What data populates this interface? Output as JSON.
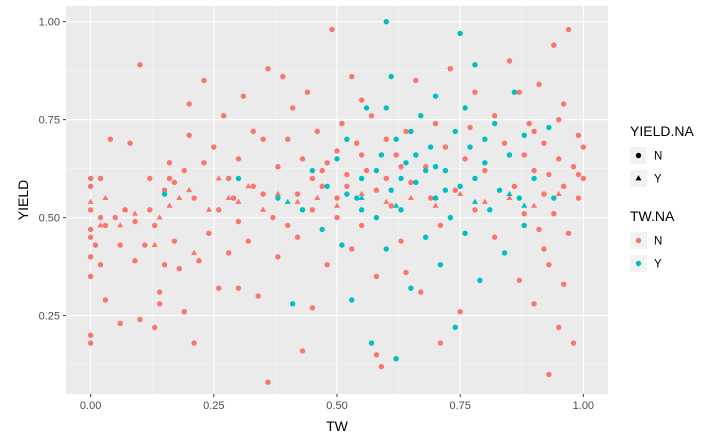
{
  "chart_data": {
    "type": "scatter",
    "title": "",
    "xlabel": "TW",
    "ylabel": "YIELD",
    "xlim": [
      -0.05,
      1.05
    ],
    "ylim": [
      0.05,
      1.04
    ],
    "x_ticks": [
      0,
      0.25,
      0.5,
      0.75,
      1
    ],
    "x_tick_labels": [
      "0.00",
      "0.25",
      "0.50",
      "0.75",
      "1.00"
    ],
    "y_ticks": [
      0.25,
      0.5,
      0.75,
      1
    ],
    "y_tick_labels": [
      "0.25",
      "0.50",
      "0.75",
      "1.00"
    ],
    "grid": true,
    "legend_position": "right",
    "legends": [
      {
        "title": "YIELD.NA",
        "kind": "shape",
        "entries": [
          {
            "label": "N",
            "shape": "circle"
          },
          {
            "label": "Y",
            "shape": "triangle"
          }
        ]
      },
      {
        "title": "TW.NA",
        "kind": "color",
        "entries": [
          {
            "label": "N",
            "color": "#F8766D"
          },
          {
            "label": "Y",
            "color": "#00BFC4"
          }
        ]
      }
    ],
    "colors": {
      "N": "#F8766D",
      "Y": "#00BFC4"
    },
    "series": [
      {
        "tw_na": "N",
        "yield_na": "N",
        "shape": "circle",
        "points": [
          [
            0,
            0.18
          ],
          [
            0,
            0.2
          ],
          [
            0,
            0.35
          ],
          [
            0,
            0.4
          ],
          [
            0,
            0.45
          ],
          [
            0,
            0.47
          ],
          [
            0,
            0.52
          ],
          [
            0,
            0.58
          ],
          [
            0,
            0.6
          ],
          [
            0.01,
            0.43
          ],
          [
            0.02,
            0.38
          ],
          [
            0.02,
            0.5
          ],
          [
            0.02,
            0.6
          ],
          [
            0.03,
            0.29
          ],
          [
            0.03,
            0.48
          ],
          [
            0.04,
            0.7
          ],
          [
            0.05,
            0.5
          ],
          [
            0.06,
            0.23
          ],
          [
            0.06,
            0.43
          ],
          [
            0.07,
            0.52
          ],
          [
            0.08,
            0.69
          ],
          [
            0.09,
            0.49
          ],
          [
            0.09,
            0.39
          ],
          [
            0.1,
            0.24
          ],
          [
            0.1,
            0.89
          ],
          [
            0.11,
            0.43
          ],
          [
            0.12,
            0.6
          ],
          [
            0.12,
            0.52
          ],
          [
            0.13,
            0.22
          ],
          [
            0.13,
            0.48
          ],
          [
            0.14,
            0.28
          ],
          [
            0.14,
            0.31
          ],
          [
            0.15,
            0.38
          ],
          [
            0.15,
            0.57
          ],
          [
            0.16,
            0.6
          ],
          [
            0.16,
            0.64
          ],
          [
            0.17,
            0.44
          ],
          [
            0.17,
            0.59
          ],
          [
            0.18,
            0.37
          ],
          [
            0.19,
            0.26
          ],
          [
            0.19,
            0.62
          ],
          [
            0.2,
            0.71
          ],
          [
            0.2,
            0.79
          ],
          [
            0.21,
            0.18
          ],
          [
            0.21,
            0.55
          ],
          [
            0.22,
            0.39
          ],
          [
            0.23,
            0.85
          ],
          [
            0.23,
            0.64
          ],
          [
            0.24,
            0.46
          ],
          [
            0.25,
            0.68
          ],
          [
            0.26,
            0.32
          ],
          [
            0.26,
            0.52
          ],
          [
            0.27,
            0.76
          ],
          [
            0.28,
            0.41
          ],
          [
            0.28,
            0.6
          ],
          [
            0.29,
            0.55
          ],
          [
            0.3,
            0.32
          ],
          [
            0.3,
            0.65
          ],
          [
            0.31,
            0.81
          ],
          [
            0.32,
            0.44
          ],
          [
            0.33,
            0.58
          ],
          [
            0.34,
            0.3
          ],
          [
            0.35,
            0.56
          ],
          [
            0.35,
            0.7
          ],
          [
            0.36,
            0.08
          ],
          [
            0.36,
            0.88
          ],
          [
            0.37,
            0.5
          ],
          [
            0.38,
            0.63
          ],
          [
            0.38,
            0.4
          ],
          [
            0.39,
            0.86
          ],
          [
            0.4,
            0.7
          ],
          [
            0.41,
            0.78
          ],
          [
            0.42,
            0.56
          ],
          [
            0.42,
            0.45
          ],
          [
            0.43,
            0.65
          ],
          [
            0.44,
            0.82
          ],
          [
            0.45,
            0.52
          ],
          [
            0.45,
            0.27
          ],
          [
            0.46,
            0.72
          ],
          [
            0.47,
            0.58
          ],
          [
            0.48,
            0.64
          ],
          [
            0.48,
            0.38
          ],
          [
            0.49,
            0.98
          ],
          [
            0.5,
            0.67
          ],
          [
            0.5,
            0.55
          ],
          [
            0.51,
            0.74
          ],
          [
            0.52,
            0.61
          ],
          [
            0.53,
            0.42
          ],
          [
            0.53,
            0.86
          ],
          [
            0.54,
            0.69
          ],
          [
            0.55,
            0.48
          ],
          [
            0.56,
            0.62
          ],
          [
            0.57,
            0.76
          ],
          [
            0.58,
            0.35
          ],
          [
            0.58,
            0.57
          ],
          [
            0.59,
            0.12
          ],
          [
            0.6,
            0.7
          ],
          [
            0.61,
            0.53
          ],
          [
            0.62,
            0.66
          ],
          [
            0.63,
            0.44
          ],
          [
            0.64,
            0.72
          ],
          [
            0.65,
            0.59
          ],
          [
            0.66,
            0.85
          ],
          [
            0.67,
            0.31
          ],
          [
            0.68,
            0.63
          ],
          [
            0.69,
            0.55
          ],
          [
            0.7,
            0.74
          ],
          [
            0.71,
            0.48
          ],
          [
            0.72,
            0.68
          ],
          [
            0.73,
            0.88
          ],
          [
            0.74,
            0.57
          ],
          [
            0.75,
            0.26
          ],
          [
            0.76,
            0.65
          ],
          [
            0.77,
            0.73
          ],
          [
            0.78,
            0.52
          ],
          [
            0.8,
            0.62
          ],
          [
            0.82,
            0.45
          ],
          [
            0.84,
            0.69
          ],
          [
            0.85,
            0.9
          ],
          [
            0.86,
            0.58
          ],
          [
            0.87,
            0.34
          ],
          [
            0.88,
            0.66
          ],
          [
            0.88,
            0.51
          ],
          [
            0.89,
            0.74
          ],
          [
            0.9,
            0.28
          ],
          [
            0.9,
            0.62
          ],
          [
            0.91,
            0.47
          ],
          [
            0.91,
            0.84
          ],
          [
            0.92,
            0.56
          ],
          [
            0.92,
            0.69
          ],
          [
            0.93,
            0.38
          ],
          [
            0.93,
            0.61
          ],
          [
            0.94,
            0.94
          ],
          [
            0.94,
            0.51
          ],
          [
            0.95,
            0.65
          ],
          [
            0.95,
            0.22
          ],
          [
            0.96,
            0.58
          ],
          [
            0.96,
            0.79
          ],
          [
            0.97,
            0.46
          ],
          [
            0.97,
            0.98
          ],
          [
            0.98,
            0.63
          ],
          [
            0.98,
            0.18
          ],
          [
            0.99,
            0.55
          ],
          [
            0.99,
            0.71
          ],
          [
            1,
            0.6
          ],
          [
            1,
            0.68
          ],
          [
            0.93,
            0.1
          ],
          [
            0.58,
            0.15
          ],
          [
            0.43,
            0.16
          ],
          [
            0.87,
            0.82
          ],
          [
            0.92,
            0.42
          ],
          [
            0.96,
            0.33
          ],
          [
            0.55,
            0.8
          ],
          [
            0.4,
            0.48
          ],
          [
            0.33,
            0.72
          ],
          [
            0.3,
            0.49
          ],
          [
            0.64,
            0.36
          ],
          [
            0.71,
            0.18
          ],
          [
            0.78,
            0.82
          ],
          [
            0.82,
            0.76
          ],
          [
            0.9,
            0.72
          ],
          [
            0.95,
            0.75
          ],
          [
            0.99,
            0.61
          ],
          [
            0.5,
            0.5
          ],
          [
            0.45,
            0.6
          ],
          [
            0.47,
            0.62
          ],
          [
            0.52,
            0.58
          ],
          [
            0.55,
            0.66
          ],
          [
            0.6,
            0.6
          ],
          [
            0.63,
            0.63
          ]
        ]
      },
      {
        "tw_na": "N",
        "yield_na": "Y",
        "shape": "triangle",
        "points": [
          [
            0,
            0.54
          ],
          [
            0.02,
            0.48
          ],
          [
            0.03,
            0.55
          ],
          [
            0.06,
            0.48
          ],
          [
            0.07,
            0.52
          ],
          [
            0.09,
            0.51
          ],
          [
            0.13,
            0.43
          ],
          [
            0.14,
            0.5
          ],
          [
            0.16,
            0.53
          ],
          [
            0.18,
            0.55
          ],
          [
            0.2,
            0.57
          ],
          [
            0.21,
            0.41
          ],
          [
            0.24,
            0.52
          ],
          [
            0.26,
            0.6
          ],
          [
            0.28,
            0.55
          ],
          [
            0.3,
            0.54
          ],
          [
            0.32,
            0.58
          ],
          [
            0.35,
            0.52
          ],
          [
            0.38,
            0.56
          ],
          [
            0.42,
            0.54
          ],
          [
            0.46,
            0.55
          ],
          [
            0.5,
            0.53
          ],
          [
            0.55,
            0.56
          ],
          [
            0.6,
            0.54
          ],
          [
            0.65,
            0.55
          ],
          [
            0.7,
            0.53
          ],
          [
            0.75,
            0.56
          ],
          [
            0.8,
            0.54
          ],
          [
            0.85,
            0.55
          ],
          [
            0.9,
            0.53
          ],
          [
            0.95,
            0.56
          ]
        ]
      },
      {
        "tw_na": "Y",
        "yield_na": "N",
        "shape": "circle",
        "points": [
          [
            0.15,
            0.56
          ],
          [
            0.3,
            0.6
          ],
          [
            0.38,
            0.55
          ],
          [
            0.41,
            0.28
          ],
          [
            0.43,
            0.52
          ],
          [
            0.45,
            0.62
          ],
          [
            0.47,
            0.47
          ],
          [
            0.48,
            0.58
          ],
          [
            0.5,
            0.65
          ],
          [
            0.51,
            0.43
          ],
          [
            0.52,
            0.7
          ],
          [
            0.53,
            0.29
          ],
          [
            0.54,
            0.55
          ],
          [
            0.55,
            0.6
          ],
          [
            0.56,
            0.78
          ],
          [
            0.57,
            0.18
          ],
          [
            0.58,
            0.5
          ],
          [
            0.59,
            0.66
          ],
          [
            0.6,
            0.42
          ],
          [
            0.6,
            1.0
          ],
          [
            0.61,
            0.57
          ],
          [
            0.61,
            0.86
          ],
          [
            0.62,
            0.14
          ],
          [
            0.62,
            0.7
          ],
          [
            0.63,
            0.52
          ],
          [
            0.64,
            0.64
          ],
          [
            0.65,
            0.32
          ],
          [
            0.66,
            0.59
          ],
          [
            0.67,
            0.76
          ],
          [
            0.68,
            0.45
          ],
          [
            0.69,
            0.68
          ],
          [
            0.7,
            0.55
          ],
          [
            0.7,
            0.81
          ],
          [
            0.71,
            0.38
          ],
          [
            0.72,
            0.62
          ],
          [
            0.73,
            0.5
          ],
          [
            0.74,
            0.72
          ],
          [
            0.74,
            0.22
          ],
          [
            0.75,
            0.97
          ],
          [
            0.75,
            0.58
          ],
          [
            0.76,
            0.46
          ],
          [
            0.77,
            0.68
          ],
          [
            0.78,
            0.89
          ],
          [
            0.78,
            0.6
          ],
          [
            0.79,
            0.34
          ],
          [
            0.8,
            0.64
          ],
          [
            0.81,
            0.52
          ],
          [
            0.82,
            0.74
          ],
          [
            0.83,
            0.57
          ],
          [
            0.84,
            0.41
          ],
          [
            0.85,
            0.66
          ],
          [
            0.86,
            0.82
          ],
          [
            0.87,
            0.55
          ],
          [
            0.88,
            0.71
          ],
          [
            0.88,
            0.48
          ],
          [
            0.9,
            0.6
          ],
          [
            0.93,
            0.73
          ],
          [
            0.94,
            0.55
          ],
          [
            0.63,
            0.6
          ],
          [
            0.66,
            0.66
          ],
          [
            0.68,
            0.62
          ],
          [
            0.7,
            0.63
          ],
          [
            0.72,
            0.57
          ],
          [
            0.58,
            0.62
          ],
          [
            0.55,
            0.52
          ],
          [
            0.52,
            0.56
          ],
          [
            0.65,
            0.72
          ],
          [
            0.6,
            0.78
          ],
          [
            0.76,
            0.78
          ],
          [
            0.8,
            0.7
          ]
        ]
      },
      {
        "tw_na": "Y",
        "yield_na": "Y",
        "shape": "triangle",
        "points": [
          [
            0.4,
            0.54
          ],
          [
            0.55,
            0.55
          ],
          [
            0.62,
            0.53
          ],
          [
            0.7,
            0.55
          ],
          [
            0.78,
            0.54
          ],
          [
            0.85,
            0.56
          ],
          [
            0.88,
            0.53
          ]
        ]
      }
    ]
  }
}
